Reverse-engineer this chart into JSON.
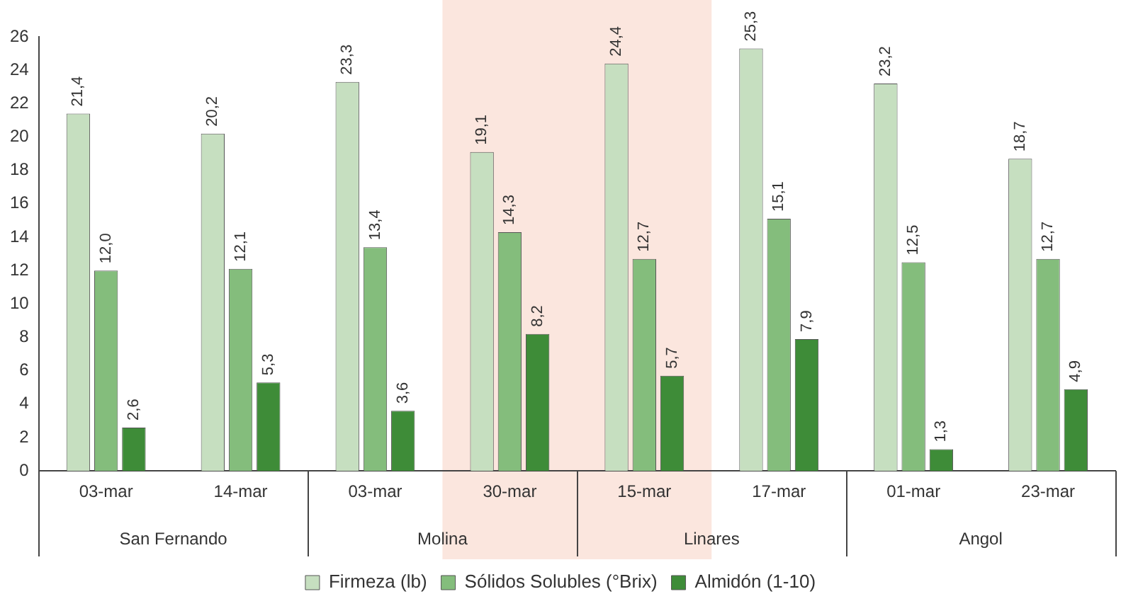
{
  "chart_data": {
    "type": "bar",
    "categories": [
      "03-mar",
      "14-mar",
      "03-mar",
      "30-mar",
      "15-mar",
      "17-mar",
      "01-mar",
      "23-mar"
    ],
    "series": [
      {
        "name": "Firmeza (lb)",
        "color": "#c6dfc0",
        "values": [
          21.4,
          20.2,
          23.3,
          19.1,
          24.4,
          25.3,
          23.2,
          18.7
        ],
        "value_labels": [
          "21,4",
          "20,2",
          "23,3",
          "19,1",
          "24,4",
          "25,3",
          "23,2",
          "18,7"
        ]
      },
      {
        "name": "Sólidos Solubles (°Brix)",
        "color": "#84bd7c",
        "values": [
          12.0,
          12.1,
          13.4,
          14.3,
          12.7,
          15.1,
          12.5,
          12.7
        ],
        "value_labels": [
          "12,0",
          "12,1",
          "13,4",
          "14,3",
          "12,7",
          "15,1",
          "12,5",
          "12,7"
        ]
      },
      {
        "name": "Almidón (1-10)",
        "color": "#3e8c38",
        "values": [
          2.6,
          5.3,
          3.6,
          8.2,
          5.7,
          7.9,
          1.3,
          4.9
        ],
        "value_labels": [
          "2,6",
          "5,3",
          "3,6",
          "8,2",
          "5,7",
          "7,9",
          "1,3",
          "4,9"
        ]
      }
    ],
    "ylim": [
      0,
      26
    ],
    "yticks": [
      0,
      2,
      4,
      6,
      8,
      10,
      12,
      14,
      16,
      18,
      20,
      22,
      24,
      26
    ],
    "grid": false,
    "legend": "bottom",
    "bands": [
      {
        "axis": "x",
        "from": "30-mar",
        "to": "15-mar",
        "color": "#fbe6de"
      }
    ],
    "annotations": [
      "San Fernando",
      "Molina",
      "Linares",
      "Angol"
    ]
  }
}
